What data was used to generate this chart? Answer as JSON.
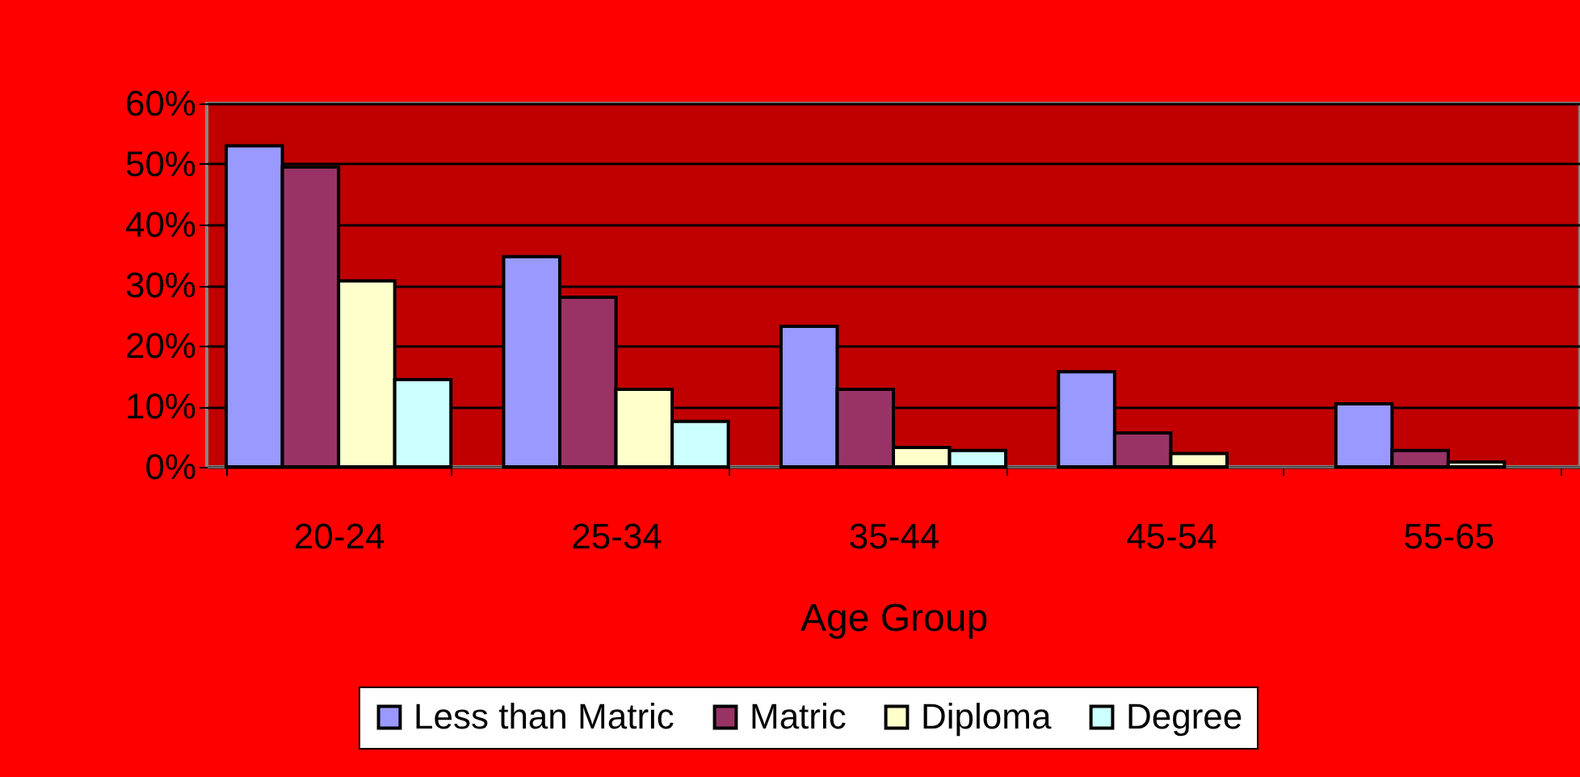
{
  "chart_data": {
    "type": "bar",
    "xlabel": "Age Group",
    "categories": [
      "20-24",
      "25-34",
      "35-44",
      "45-54",
      "55-65"
    ],
    "series": [
      {
        "name": "Less than Matric",
        "color": "#9999ff",
        "values": [
          53,
          34.7,
          23.2,
          15.7,
          10.4
        ]
      },
      {
        "name": "Matric",
        "color": "#993366",
        "values": [
          49.5,
          28,
          12.8,
          5.6,
          2.7
        ]
      },
      {
        "name": "Diploma",
        "color": "#ffffcc",
        "values": [
          30.7,
          12.8,
          3.2,
          2.2,
          0.8
        ]
      },
      {
        "name": "Degree",
        "color": "#ccffff",
        "values": [
          14.4,
          7.5,
          2.7,
          null,
          null
        ]
      }
    ],
    "ylim": [
      0,
      60
    ],
    "yticks": [
      {
        "value": 0,
        "label": "0%"
      },
      {
        "value": 10,
        "label": "10%"
      },
      {
        "value": 20,
        "label": "20%"
      },
      {
        "value": 30,
        "label": "30%"
      },
      {
        "value": 40,
        "label": "40%"
      },
      {
        "value": 50,
        "label": "50%"
      },
      {
        "value": 60,
        "label": "60%"
      }
    ],
    "grid": "y",
    "legend": "bottom"
  }
}
